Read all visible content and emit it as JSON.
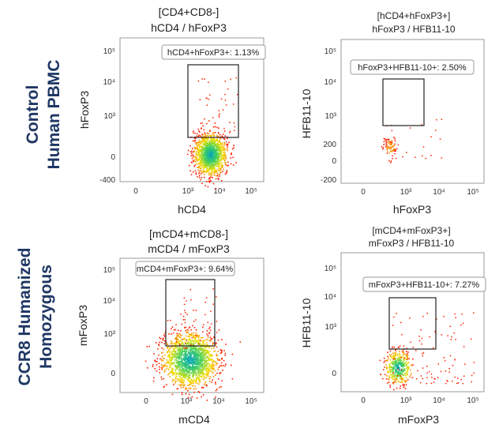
{
  "row_labels": [
    {
      "lines": [
        "Control",
        "Human PBMC"
      ]
    },
    {
      "lines": [
        "CCR8 Humanized",
        "Homozygous"
      ]
    }
  ],
  "colors": {
    "row_label": "#1f3764",
    "density_high": "#00a0c0",
    "density_mid": "#f0e000",
    "density_low": "#ff2000"
  },
  "chart_data": [
    {
      "type": "scatter",
      "title_lines": [
        "[CD4+CD8-]",
        "hCD4 / hFoxP3"
      ],
      "xlabel": "hCD4",
      "ylabel": "hFoxP3",
      "x_ticks": [
        "0",
        "10³",
        "10⁴",
        "10⁵"
      ],
      "y_ticks": [
        "10⁵",
        "10⁴",
        "10³",
        "0",
        "-400"
      ],
      "gate": {
        "label": "hCD4+hFoxP3+",
        "percent": "1.13%",
        "x_range": [
          "10³",
          "3×10⁴"
        ],
        "y_range": [
          "~400",
          "10⁵"
        ]
      },
      "population": {
        "center_x": "~7×10³",
        "center_y": "~0",
        "bulk_events": "dense",
        "sparse_events": "few"
      }
    },
    {
      "type": "scatter",
      "title_lines": [
        "[hCD4+hFoxP3+]",
        "hFoxP3 / HFB11-10"
      ],
      "xlabel": "hFoxP3",
      "ylabel": "HFB11-10",
      "x_ticks": [
        "0",
        "10³",
        "10⁴",
        "10⁵"
      ],
      "y_ticks": [
        "10⁵",
        "10⁴",
        "10³",
        "200",
        "0",
        "-200"
      ],
      "gate": {
        "label": "hFoxP3+HFB11-10+",
        "percent": "2.50%"
      },
      "population": {
        "center_x": "~600",
        "center_y": "~150",
        "bulk_events": "sparse",
        "sparse_events": "few"
      }
    },
    {
      "type": "scatter",
      "title_lines": [
        "[mCD4+mCD8-]",
        "mCD4 / mFoxP3"
      ],
      "xlabel": "mCD4",
      "ylabel": "mFoxP3",
      "x_ticks": [
        "0",
        "10³",
        "10⁴",
        "10⁵"
      ],
      "y_ticks": [
        "10⁵",
        "10⁴",
        "10³",
        "0"
      ],
      "gate": {
        "label": "mCD4+mFoxP3+",
        "percent": "9.64%"
      },
      "population": {
        "center_x": "~2×10³",
        "center_y": "~0",
        "bulk_events": "dense",
        "sparse_events": "few"
      }
    },
    {
      "type": "scatter",
      "title_lines": [
        "[mCD4+mFoxP3+]",
        "mFoxP3 / HFB11-10"
      ],
      "xlabel": "mFoxP3",
      "ylabel": "HFB11-10",
      "x_ticks": [
        "0",
        "10³",
        "10⁴",
        "10⁵"
      ],
      "y_ticks": [
        "10⁵",
        "10⁴",
        "10³",
        "0"
      ],
      "gate": {
        "label": "mFoxP3+HFB11-10+",
        "percent": "7.27%"
      },
      "population": {
        "center_x": "~600",
        "center_y": "~0",
        "bulk_events": "medium",
        "sparse_events": "many"
      }
    }
  ]
}
